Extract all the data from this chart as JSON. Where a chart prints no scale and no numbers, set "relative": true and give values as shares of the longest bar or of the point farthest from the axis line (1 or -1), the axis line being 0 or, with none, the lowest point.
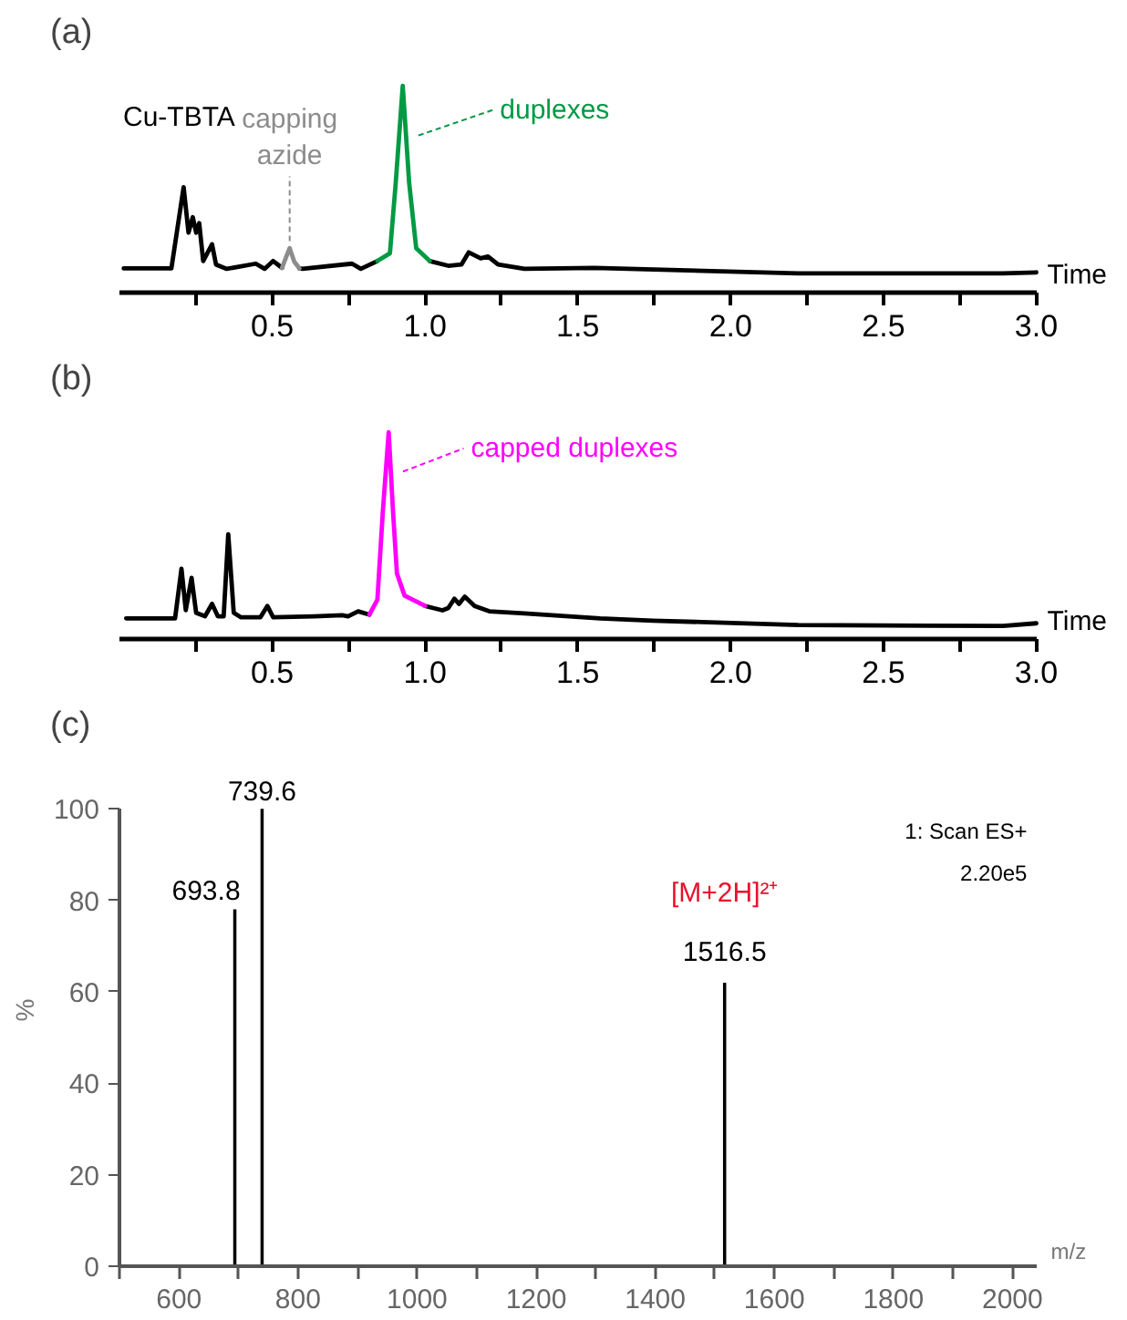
{
  "chart_data": [
    {
      "type": "line",
      "title": "(a)",
      "xlabel": "Time",
      "relative": true,
      "xlim": [
        0,
        3.0
      ],
      "xticks": [
        {
          "value": 0.25,
          "label": null
        },
        {
          "value": 0.5,
          "label": "0.5"
        },
        {
          "value": 0.75,
          "label": null
        },
        {
          "value": 1.0,
          "label": "1.0"
        },
        {
          "value": 1.25,
          "label": null
        },
        {
          "value": 1.5,
          "label": "1.5"
        },
        {
          "value": 1.75,
          "label": null
        },
        {
          "value": 2.0,
          "label": "2.0"
        },
        {
          "value": 2.25,
          "label": null
        },
        {
          "value": 2.5,
          "label": "2.5"
        },
        {
          "value": 2.75,
          "label": null
        },
        {
          "value": 3.0,
          "label": "3.0"
        }
      ],
      "series": [
        {
          "color": "#000000",
          "x": [
            0.014,
            0.17,
            0.21,
            0.226,
            0.24,
            0.251,
            0.261,
            0.274,
            0.303,
            0.316,
            0.351,
            0.446,
            0.475,
            0.503,
            0.523,
            0.532,
            0.56,
            0.589,
            0.599,
            0.761,
            0.79,
            0.844,
            0.93,
            1.015,
            1.076,
            1.119,
            1.143,
            1.182,
            1.206,
            1.239,
            1.325,
            1.554,
            2.22,
            2.89,
            3.0
          ],
          "values": [
            0.117,
            0.117,
            0.51,
            0.29,
            0.365,
            0.29,
            0.336,
            0.153,
            0.234,
            0.136,
            0.115,
            0.14,
            0.115,
            0.153,
            0.13,
            0.12,
            null,
            0.117,
            0.115,
            0.14,
            0.115,
            0.153,
            null,
            0.153,
            0.13,
            0.136,
            0.195,
            0.166,
            0.175,
            0.136,
            0.115,
            0.12,
            0.093,
            0.093,
            0.098
          ]
        },
        {
          "color": "#8c8c8c",
          "x": [
            0.532,
            0.545,
            0.557,
            0.572,
            0.589
          ],
          "values": [
            0.12,
            0.17,
            0.215,
            0.15,
            0.117
          ]
        },
        {
          "color": "#009a44",
          "x": [
            0.844,
            0.885,
            0.904,
            0.927,
            0.948,
            0.971,
            1.015
          ],
          "values": [
            0.153,
            0.19,
            0.53,
            1.0,
            0.53,
            0.215,
            0.153
          ]
        }
      ],
      "annotations": [
        {
          "text": "Cu-TBTA",
          "x": 0.21,
          "y": 0.51
        },
        {
          "text": "capping azide",
          "x": 0.557,
          "y": 0.215
        },
        {
          "text": "duplexes",
          "x": 0.96,
          "y": 0.76
        }
      ]
    },
    {
      "type": "line",
      "title": "(b)",
      "xlabel": "Time",
      "relative": true,
      "xlim": [
        0,
        3.0
      ],
      "xticks": [
        {
          "value": 0.25,
          "label": null
        },
        {
          "value": 0.5,
          "label": "0.5"
        },
        {
          "value": 0.75,
          "label": null
        },
        {
          "value": 1.0,
          "label": "1.0"
        },
        {
          "value": 1.25,
          "label": null
        },
        {
          "value": 1.5,
          "label": "1.5"
        },
        {
          "value": 1.75,
          "label": null
        },
        {
          "value": 2.0,
          "label": "2.0"
        },
        {
          "value": 2.25,
          "label": null
        },
        {
          "value": 2.5,
          "label": "2.5"
        },
        {
          "value": 2.75,
          "label": null
        },
        {
          "value": 3.0,
          "label": "3.0"
        }
      ],
      "series": [
        {
          "color": "#000000",
          "x": [
            0.022,
            0.182,
            0.203,
            0.217,
            0.236,
            0.251,
            0.28,
            0.303,
            0.322,
            0.341,
            0.356,
            0.374,
            0.398,
            0.461,
            0.484,
            0.503,
            0.637,
            0.729,
            0.748,
            0.781,
            0.818,
            0.86,
            1.0,
            1.057,
            1.076,
            1.096,
            1.111,
            1.13,
            1.162,
            1.21,
            1.325,
            1.573,
            1.745,
            2.221,
            2.891,
            3.0
          ],
          "values": [
            0.1,
            0.1,
            0.34,
            0.14,
            0.296,
            0.127,
            0.11,
            0.17,
            0.11,
            0.11,
            0.506,
            0.127,
            0.105,
            0.105,
            0.16,
            0.105,
            0.11,
            0.115,
            0.11,
            0.134,
            0.118,
            null,
            0.16,
            0.139,
            0.15,
            0.195,
            0.17,
            0.205,
            0.16,
            0.134,
            0.124,
            0.1,
            0.089,
            0.068,
            0.063,
            0.076
          ]
        },
        {
          "color": "#ff00ff",
          "x": [
            0.818,
            0.844,
            0.862,
            0.881,
            0.895,
            0.908,
            0.933,
            1.0
          ],
          "values": [
            0.118,
            0.19,
            0.62,
            1.0,
            0.62,
            0.317,
            0.21,
            0.16
          ]
        }
      ],
      "annotations": [
        {
          "text": "capped duplexes",
          "x": 0.91,
          "y": 0.81
        }
      ]
    },
    {
      "type": "bar",
      "title": "(c)",
      "xlabel": "m/z",
      "ylabel": "%",
      "x": [
        693.8,
        739.6,
        1516.5
      ],
      "values": [
        78,
        100,
        62
      ],
      "color": "#000000",
      "xlim": [
        500,
        2040
      ],
      "ylim": [
        0,
        100
      ],
      "xticks": [
        {
          "value": 500,
          "label": null
        },
        600,
        {
          "value": 700,
          "label": null
        },
        800,
        {
          "value": 900,
          "label": null
        },
        1000,
        {
          "value": 1100,
          "label": null
        },
        1200,
        {
          "value": 1300,
          "label": null
        },
        1400,
        {
          "value": 1500,
          "label": null
        },
        1600,
        {
          "value": 1700,
          "label": null
        },
        1800,
        {
          "value": 1900,
          "label": null
        },
        2000
      ],
      "yticks": [
        0,
        20,
        40,
        60,
        80,
        100
      ],
      "annotations": [
        {
          "text": "[M+2H]²⁺",
          "x": 1516.5,
          "y": 62
        },
        {
          "text": "693.8",
          "x": 693.8,
          "y": 78
        },
        {
          "text": "739.6",
          "x": 739.6,
          "y": 100
        },
        {
          "text": "1516.5",
          "x": 1516.5,
          "y": 62
        },
        "1: Scan ES+",
        "2.20e5"
      ]
    }
  ]
}
